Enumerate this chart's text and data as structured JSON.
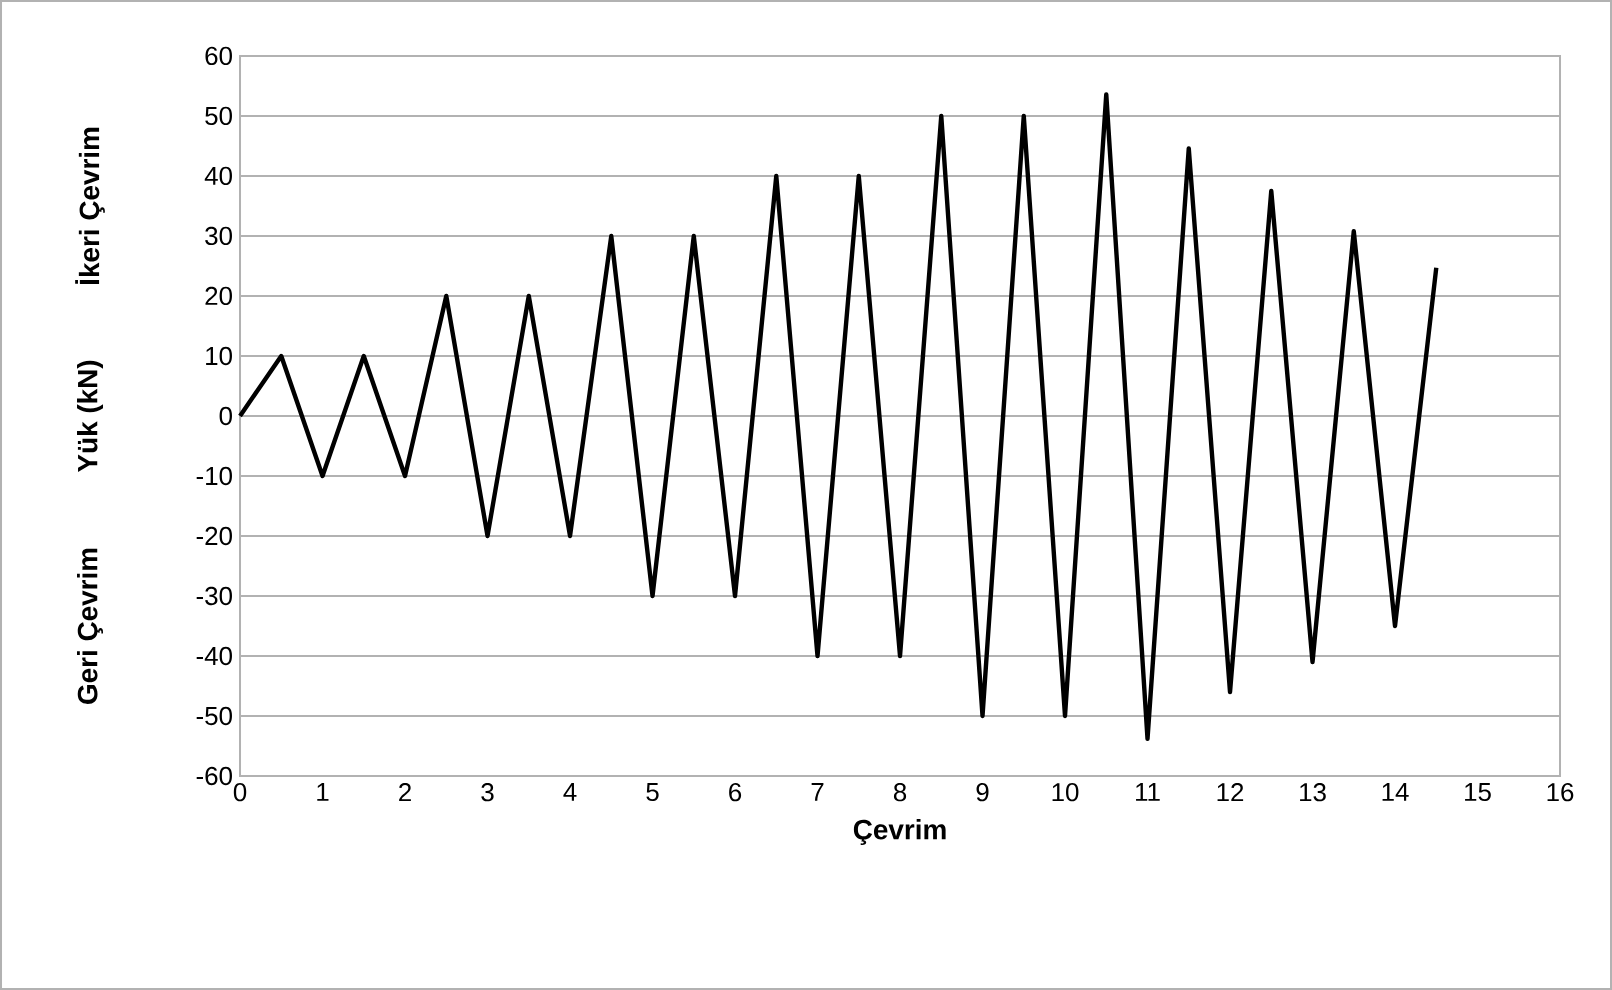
{
  "chart_data": {
    "type": "line",
    "xlabel": "Çevrim",
    "ylabel": "Yük (kN)",
    "annotations": [
      "Geri Çevrim",
      "İkeri Çevrim"
    ],
    "x": [
      0,
      0.5,
      1,
      1.5,
      2,
      2.5,
      3,
      3.5,
      4,
      4.5,
      5,
      5.5,
      6,
      6.5,
      7,
      7.5,
      8,
      8.5,
      9,
      9.5,
      10,
      10.5,
      11,
      11.5,
      12,
      12.5,
      13,
      13.5,
      14,
      14.5
    ],
    "series": [
      {
        "color": "#000000",
        "values": [
          0,
          10,
          -10,
          10,
          -10,
          20,
          -20,
          20,
          -20,
          30,
          -30,
          30,
          -30,
          40,
          -40,
          40,
          -40,
          50,
          -50,
          50,
          -50,
          53.6,
          -53.8,
          44.6,
          -46,
          37.5,
          -41,
          30.8,
          -35,
          24.7
        ]
      }
    ],
    "xlim": [
      0,
      16
    ],
    "xticks": [
      0,
      1,
      2,
      3,
      4,
      5,
      6,
      7,
      8,
      9,
      10,
      11,
      12,
      13,
      14,
      15,
      16
    ],
    "ylim": [
      -60,
      60
    ],
    "yticks": [
      -60,
      -50,
      -40,
      -30,
      -20,
      -10,
      0,
      10,
      20,
      30,
      40,
      50,
      60
    ],
    "grid": "y",
    "marker": "none",
    "line_style": "solid"
  }
}
